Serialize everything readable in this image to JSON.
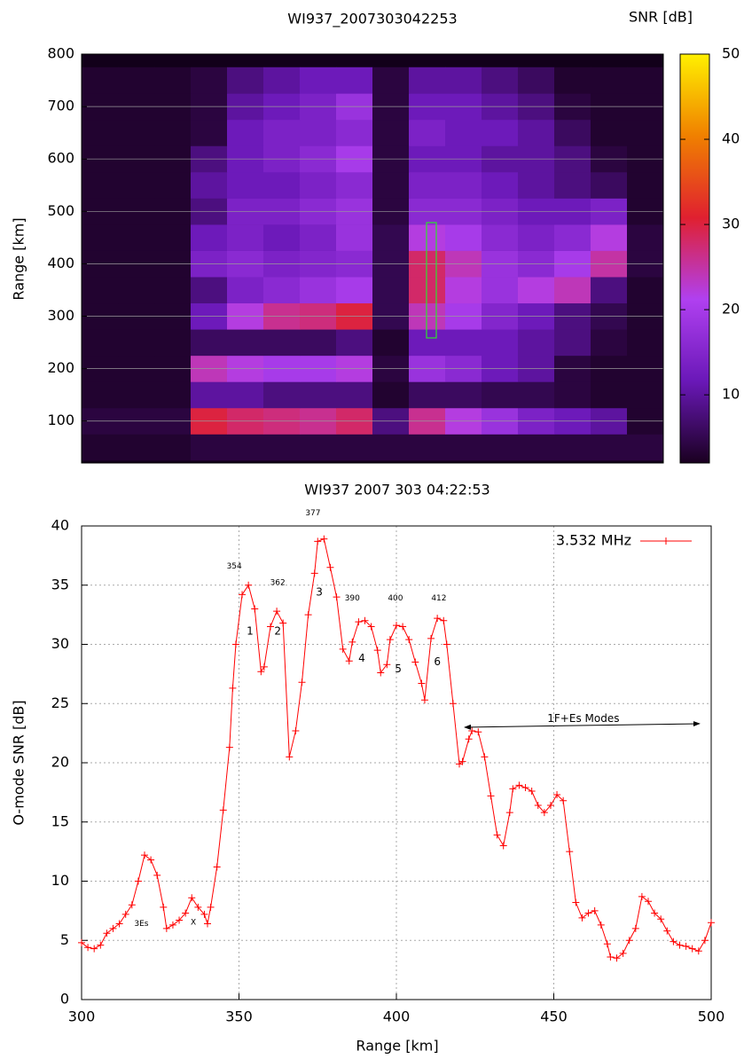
{
  "chart_data": [
    {
      "type": "heatmap",
      "title": "WI937_2007303042253",
      "y_label": "Range [km]",
      "colorbar_label": "SNR [dB]",
      "y": [
        50,
        100,
        150,
        200,
        250,
        300,
        350,
        400,
        450,
        500,
        550,
        600,
        650,
        700,
        750
      ],
      "z": [
        [
          3,
          3,
          3,
          4,
          4,
          4,
          4,
          4,
          4,
          4,
          4,
          4,
          4,
          4,
          4,
          4
        ],
        [
          4,
          4,
          4,
          30,
          28,
          27,
          26,
          28,
          8,
          26,
          22,
          18,
          14,
          12,
          10,
          3
        ],
        [
          3,
          3,
          3,
          10,
          10,
          8,
          8,
          8,
          3,
          6,
          6,
          5,
          5,
          4,
          3,
          3
        ],
        [
          3,
          3,
          3,
          24,
          22,
          20,
          20,
          22,
          4,
          18,
          16,
          12,
          10,
          4,
          3,
          3
        ],
        [
          3,
          3,
          3,
          6,
          6,
          6,
          6,
          8,
          3,
          12,
          12,
          12,
          10,
          8,
          4,
          3
        ],
        [
          3,
          3,
          3,
          12,
          22,
          26,
          27,
          30,
          5,
          24,
          20,
          15,
          12,
          8,
          5,
          3
        ],
        [
          3,
          3,
          3,
          8,
          14,
          16,
          18,
          20,
          5,
          28,
          22,
          18,
          22,
          24,
          8,
          3
        ],
        [
          3,
          3,
          3,
          14,
          16,
          14,
          15,
          16,
          5,
          28,
          24,
          18,
          16,
          20,
          25,
          4
        ],
        [
          3,
          3,
          3,
          12,
          14,
          12,
          14,
          18,
          5,
          22,
          20,
          16,
          14,
          16,
          22,
          4
        ],
        [
          3,
          3,
          3,
          8,
          14,
          14,
          16,
          18,
          4,
          16,
          16,
          14,
          12,
          12,
          14,
          3
        ],
        [
          3,
          3,
          3,
          10,
          12,
          12,
          14,
          16,
          4,
          14,
          14,
          12,
          10,
          8,
          6,
          3
        ],
        [
          3,
          3,
          3,
          8,
          12,
          14,
          16,
          20,
          4,
          12,
          12,
          10,
          10,
          8,
          4,
          3
        ],
        [
          3,
          3,
          3,
          4,
          12,
          14,
          14,
          16,
          4,
          14,
          12,
          12,
          10,
          6,
          3,
          3
        ],
        [
          3,
          3,
          3,
          4,
          10,
          12,
          14,
          18,
          4,
          12,
          12,
          10,
          8,
          4,
          3,
          3
        ],
        [
          3,
          3,
          3,
          4,
          8,
          10,
          12,
          12,
          4,
          10,
          10,
          8,
          6,
          3,
          3,
          3
        ]
      ],
      "ylim": [
        20,
        800
      ],
      "yticks": [
        100,
        200,
        300,
        400,
        500,
        600,
        700,
        800
      ],
      "grid": true,
      "zlim": [
        2,
        50
      ],
      "zticks": [
        10,
        20,
        30,
        40,
        50
      ],
      "colormap": [
        "#1a0020",
        "#6a18b8",
        "#b040f0",
        "#e02030",
        "#f08000",
        "#fff000"
      ]
    },
    {
      "type": "line",
      "title": "WI937 2007 303 04:22:53",
      "x_label": "Range [km]",
      "y_label": "O-mode SNR [dB]",
      "x": [
        300,
        302,
        304,
        306,
        308,
        310,
        312,
        314,
        316,
        318,
        320,
        322,
        324,
        326,
        327,
        329,
        331,
        333,
        335,
        337,
        339,
        340,
        341,
        343,
        345,
        347,
        348,
        349,
        351,
        353,
        355,
        357,
        358,
        360,
        362,
        364,
        366,
        368,
        370,
        372,
        374,
        375,
        377,
        379,
        381,
        383,
        385,
        386,
        388,
        390,
        392,
        394,
        395,
        397,
        398,
        400,
        402,
        404,
        406,
        408,
        409,
        411,
        413,
        415,
        416,
        418,
        420,
        421,
        423,
        424,
        426,
        428,
        430,
        432,
        434,
        436,
        437,
        439,
        441,
        443,
        445,
        447,
        449,
        451,
        453,
        455,
        457,
        459,
        461,
        463,
        465,
        467,
        468,
        470,
        472,
        474,
        476,
        478,
        480,
        482,
        484,
        486,
        488,
        490,
        492,
        494,
        496,
        498,
        500
      ],
      "series": [
        {
          "name": "3.532 MHz",
          "color": "#ff0000",
          "values": [
            4.8,
            4.4,
            4.3,
            4.6,
            5.6,
            6.0,
            6.4,
            7.2,
            8.0,
            10.0,
            12.2,
            11.8,
            10.5,
            7.8,
            6.0,
            6.3,
            6.7,
            7.3,
            8.6,
            7.8,
            7.2,
            6.4,
            7.8,
            11.2,
            16,
            21.3,
            26.3,
            30,
            34.2,
            35,
            33,
            27.7,
            28.1,
            31.5,
            32.8,
            31.8,
            20.5,
            22.7,
            26.8,
            32.5,
            36,
            38.7,
            38.9,
            36.5,
            34,
            29.6,
            28.6,
            30.2,
            31.9,
            32.0,
            31.5,
            29.5,
            27.6,
            28.3,
            30.4,
            31.6,
            31.5,
            30.4,
            28.5,
            26.7,
            25.3,
            30.5,
            32.2,
            32,
            30,
            25,
            19.9,
            20.1,
            22,
            22.7,
            22.6,
            20.5,
            17.2,
            13.9,
            13.0,
            15.8,
            17.8,
            18.1,
            17.9,
            17.6,
            16.4,
            15.8,
            16.4,
            17.3,
            16.8,
            12.5,
            8.2,
            6.9,
            7.3,
            7.5,
            6.3,
            4.7,
            3.6,
            3.5,
            3.9,
            5.0,
            6.0,
            8.7,
            8.3,
            7.3,
            6.8,
            5.8,
            4.9,
            4.6,
            4.5,
            4.3,
            4.1,
            5.0,
            6.5
          ]
        }
      ],
      "xlim": [
        300,
        500
      ],
      "xticks": [
        300,
        350,
        400,
        450,
        500
      ],
      "ylim": [
        0,
        40
      ],
      "yticks": [
        0,
        5,
        10,
        15,
        20,
        25,
        30,
        35,
        40
      ],
      "grid": true,
      "legend": "upper right",
      "annotations": [
        {
          "text": "377",
          "x": 373.5,
          "y": 41.1
        },
        {
          "text": "354",
          "x": 348.5,
          "y": 36.6
        },
        {
          "text": "362",
          "x": 362.3,
          "y": 35.2
        },
        {
          "text": "390",
          "x": 386,
          "y": 33.9
        },
        {
          "text": "400",
          "x": 399.7,
          "y": 33.9
        },
        {
          "text": "412",
          "x": 413.5,
          "y": 33.9
        },
        {
          "text": "1",
          "x": 353.5,
          "y": 31.1
        },
        {
          "text": "2",
          "x": 362.3,
          "y": 31.1
        },
        {
          "text": "3",
          "x": 375.5,
          "y": 34.4
        },
        {
          "text": "4",
          "x": 389,
          "y": 28.8
        },
        {
          "text": "5",
          "x": 400.6,
          "y": 27.9
        },
        {
          "text": "6",
          "x": 413,
          "y": 28.5
        },
        {
          "text": "3Es",
          "x": 319,
          "y": 6.4
        },
        {
          "text": "X",
          "x": 335.5,
          "y": 6.5
        },
        {
          "text": "1F+Es Modes",
          "x": 459.4,
          "y": 23.7
        }
      ],
      "arrows": [
        {
          "x": [
            421.7,
            496.3
          ],
          "y": [
            23.0,
            23.3
          ]
        }
      ]
    }
  ]
}
